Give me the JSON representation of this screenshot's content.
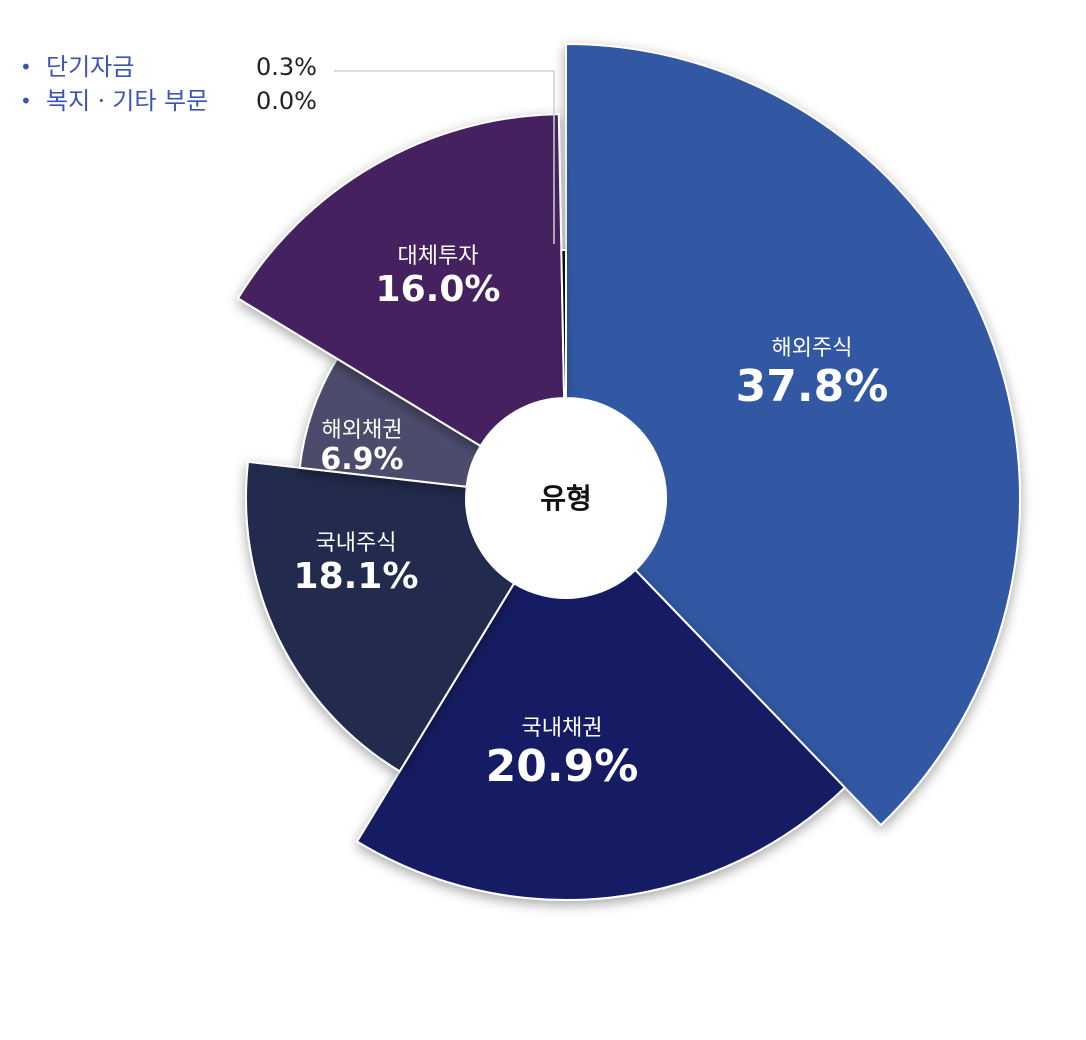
{
  "chart_data": {
    "type": "pie",
    "variant": "rose-donut",
    "center_label": "유형",
    "slices": [
      {
        "label": "해외주식",
        "value": 37.8,
        "display": "37.8%",
        "color": "#3358a3"
      },
      {
        "label": "국내채권",
        "value": 20.9,
        "display": "20.9%",
        "color": "#161d63"
      },
      {
        "label": "국내주식",
        "value": 18.1,
        "display": "18.1%",
        "color": "#202a4d"
      },
      {
        "label": "해외채권",
        "value": 6.9,
        "display": "6.9%",
        "color": "#4b4c6c"
      },
      {
        "label": "대체투자",
        "value": 16.0,
        "display": "16.0%",
        "color": "#44245e"
      },
      {
        "label": "단기자금",
        "value": 0.3,
        "display": "0.3%",
        "color": "#111111"
      },
      {
        "label": "복지ㆍ기타 부문",
        "value": 0.0,
        "display": "0.0%",
        "color": "#888888"
      }
    ],
    "legend": [
      {
        "label": "단기자금",
        "value": "0.3%"
      },
      {
        "label": "복지ㆍ기타 부문",
        "value": "0.0%"
      }
    ],
    "bullet": "•"
  }
}
